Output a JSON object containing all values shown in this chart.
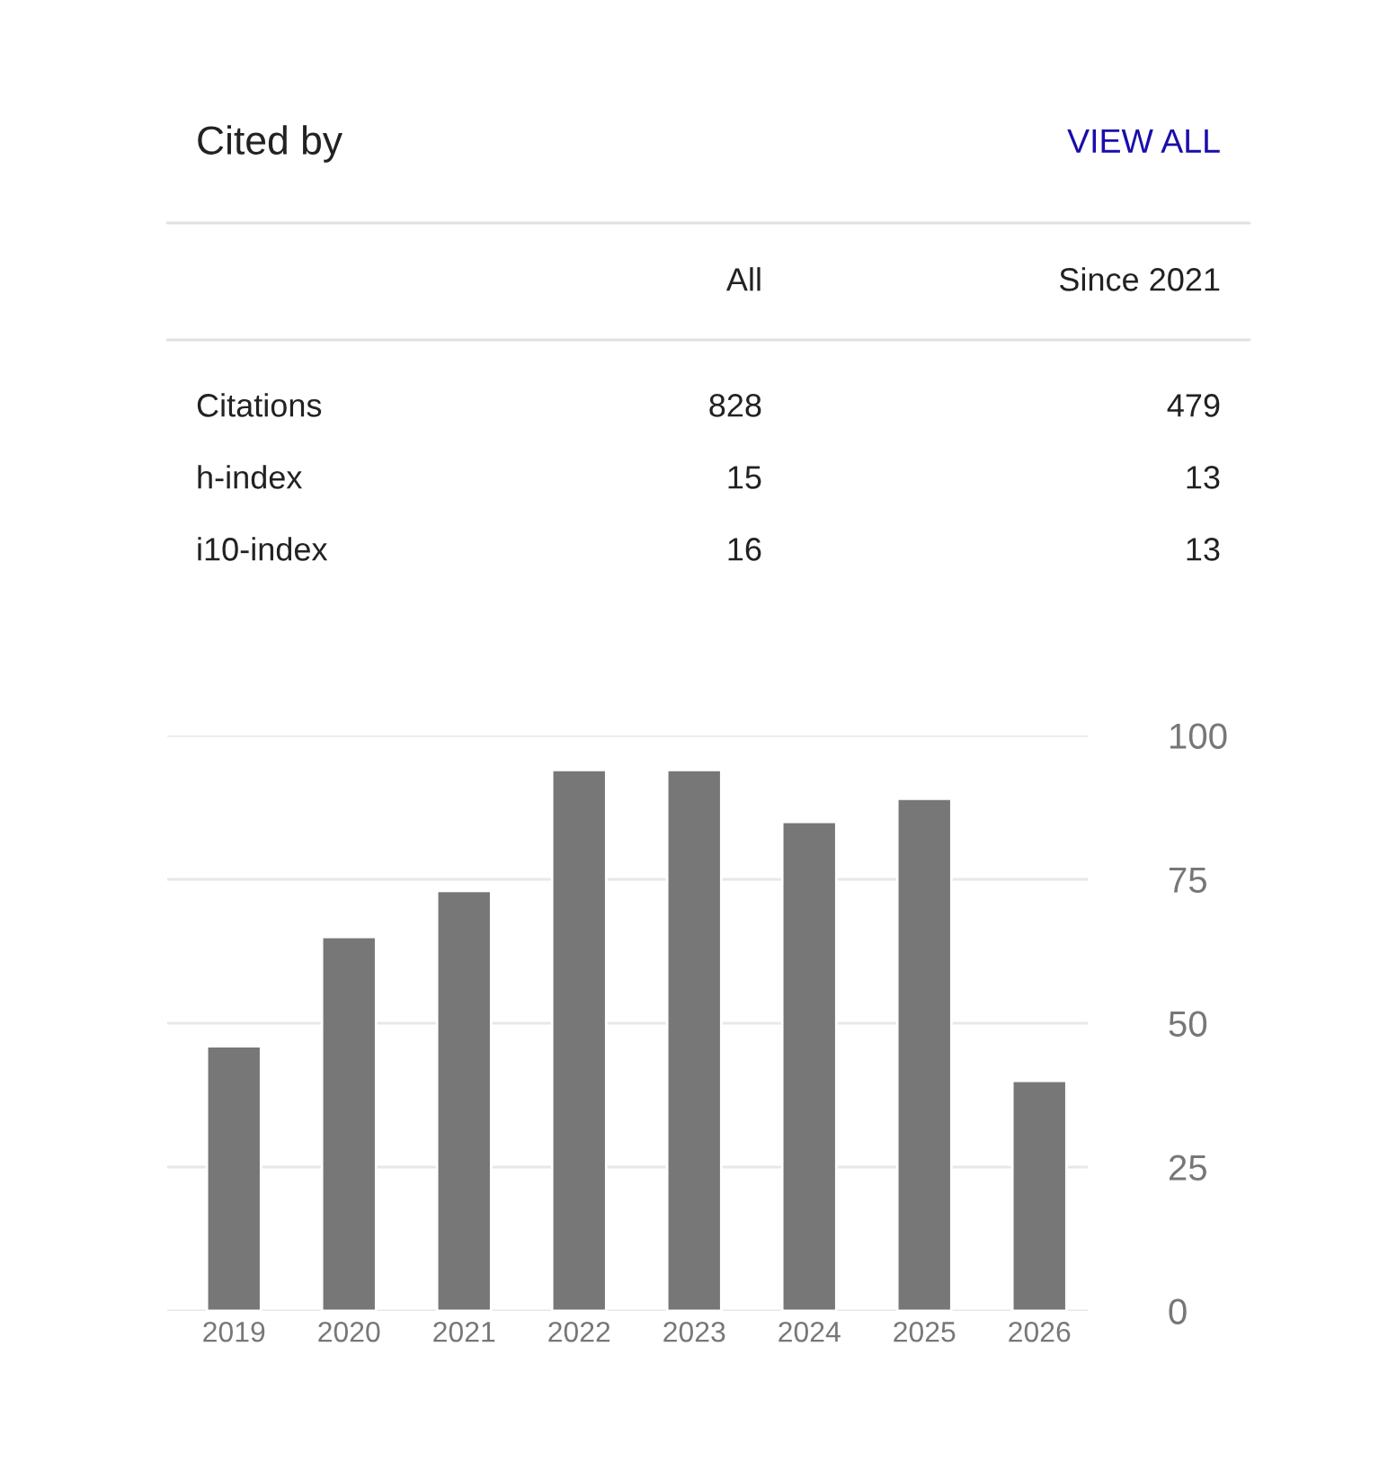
{
  "chart_data": {
    "type": "bar",
    "title": "Cited by",
    "annotations": [
      "VIEW ALL",
      "All",
      "Since 2021",
      "Citations",
      "828",
      "479",
      "h-index",
      "15",
      "13",
      "i10-index",
      "16",
      "13"
    ],
    "categories": [
      "2019",
      "2020",
      "2021",
      "2022",
      "2023",
      "2024",
      "2025",
      "2026"
    ],
    "values": [
      46,
      65,
      73,
      94,
      94,
      85,
      89,
      40
    ],
    "color": "#777777",
    "ylim": [
      0,
      100
    ],
    "yticks": [
      0,
      25,
      50,
      75,
      100
    ],
    "grid": "y"
  }
}
